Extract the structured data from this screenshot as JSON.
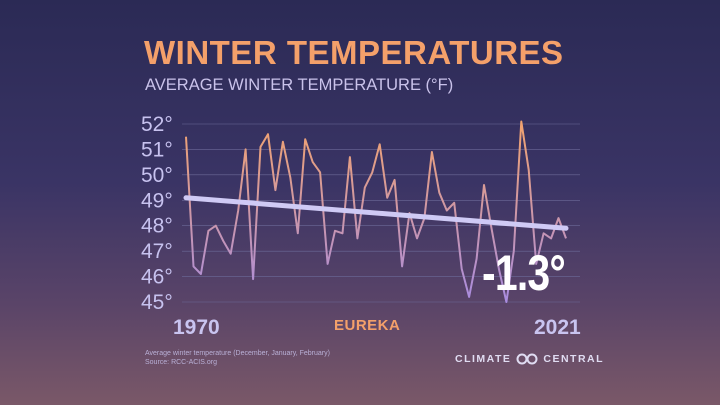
{
  "header": {
    "title": "WINTER TEMPERATURES",
    "subtitle": "AVERAGE WINTER TEMPERATURE (°F)"
  },
  "location": "EUREKA",
  "change_label": "-1.3°",
  "footnote": {
    "line1": "Average winter temperature (December, January, February)",
    "line2": "Source: RCC-ACIS.org"
  },
  "brand": {
    "left": "CLIMATE",
    "right": "CENTRAL",
    "icon": "climate-central-logo-icon"
  },
  "colors": {
    "line_start": "#f2a36e",
    "line_end": "#a98ce0",
    "trend": "#cfcaf5",
    "accent": "#f4a06a"
  },
  "chart_data": {
    "type": "line",
    "title": "WINTER TEMPERATURES",
    "subtitle": "AVERAGE WINTER TEMPERATURE (°F)",
    "xlabel": "",
    "ylabel": "",
    "x_tick_labels": [
      "1970",
      "2021"
    ],
    "y_ticks": [
      45,
      46,
      47,
      48,
      49,
      50,
      51,
      52
    ],
    "y_tick_labels": [
      "45°",
      "46°",
      "47°",
      "48°",
      "49°",
      "50°",
      "51°",
      "52°"
    ],
    "ylim": [
      45,
      52
    ],
    "xlim": [
      1970,
      2021
    ],
    "grid": true,
    "x": [
      1970,
      1971,
      1972,
      1973,
      1974,
      1975,
      1976,
      1977,
      1978,
      1979,
      1980,
      1981,
      1982,
      1983,
      1984,
      1985,
      1986,
      1987,
      1988,
      1989,
      1990,
      1991,
      1992,
      1993,
      1994,
      1995,
      1996,
      1997,
      1998,
      1999,
      2000,
      2001,
      2002,
      2003,
      2004,
      2005,
      2006,
      2007,
      2008,
      2009,
      2010,
      2011,
      2012,
      2013,
      2014,
      2015,
      2016,
      2017,
      2018,
      2019,
      2020,
      2021
    ],
    "series": [
      {
        "values": [
          51.5,
          46.4,
          46.1,
          47.8,
          48.0,
          47.4,
          46.9,
          48.6,
          51.0,
          45.9,
          51.1,
          51.6,
          49.4,
          51.3,
          49.9,
          47.7,
          51.4,
          50.5,
          50.1,
          46.5,
          47.8,
          47.7,
          50.7,
          47.5,
          49.5,
          50.1,
          51.2,
          49.1,
          49.8,
          46.4,
          48.5,
          47.5,
          48.3,
          50.9,
          49.3,
          48.6,
          48.9,
          46.3,
          45.2,
          46.7,
          49.6,
          47.9,
          46.3,
          45.0,
          47.0,
          52.1,
          50.2,
          46.5,
          47.7,
          47.5,
          48.3,
          47.5
        ]
      }
    ],
    "trend": {
      "start": [
        1970,
        49.1
      ],
      "end": [
        2021,
        47.9
      ],
      "change": -1.3
    }
  }
}
